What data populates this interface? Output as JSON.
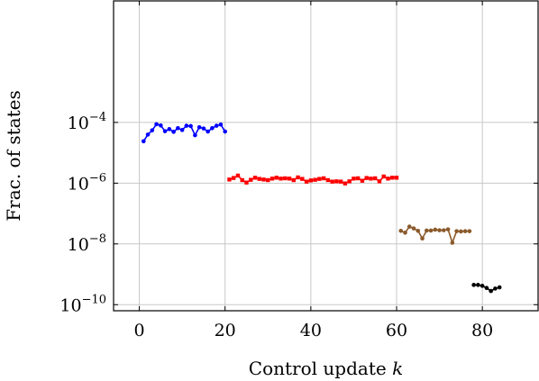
{
  "chart_data": {
    "type": "line",
    "xlabel": "Control update",
    "xlabel_var": "k",
    "ylabel": "Frac. of states",
    "xlim": [
      -6,
      93
    ],
    "ylim_log10": [
      -10.2,
      0
    ],
    "y_scale": "log",
    "grid": true,
    "x_ticks": [
      0,
      20,
      40,
      60,
      80
    ],
    "x_tick_labels": [
      "0",
      "20",
      "40",
      "60",
      "80"
    ],
    "y_ticks_exp": [
      -4,
      -6,
      -8,
      -10
    ],
    "y_tick_labels": [
      {
        "base": "10",
        "exp": "−4"
      },
      {
        "base": "10",
        "exp": "−6"
      },
      {
        "base": "10",
        "exp": "−8"
      },
      {
        "base": "10",
        "exp": "−10"
      }
    ],
    "series": [
      {
        "color": "#0000ff",
        "marker": "circle",
        "x": [
          1,
          2,
          3,
          4,
          5,
          6,
          7,
          8,
          9,
          10,
          11,
          12,
          13,
          14,
          15,
          16,
          17,
          18,
          19,
          20
        ],
        "log10_y": [
          -4.62,
          -4.4,
          -4.26,
          -4.06,
          -4.1,
          -4.29,
          -4.22,
          -4.31,
          -4.19,
          -4.25,
          -4.11,
          -4.12,
          -4.42,
          -4.16,
          -4.2,
          -4.3,
          -4.19,
          -4.11,
          -4.07,
          -4.3
        ]
      },
      {
        "color": "#ff0000",
        "marker": "square",
        "x": [
          21,
          22,
          23,
          24,
          25,
          26,
          27,
          28,
          29,
          30,
          31,
          32,
          33,
          34,
          35,
          36,
          37,
          38,
          39,
          40,
          41,
          42,
          43,
          44,
          45,
          46,
          47,
          48,
          49,
          50,
          51,
          52,
          53,
          54,
          55,
          56,
          57,
          58,
          59,
          60
        ],
        "log10_y": [
          -5.88,
          -5.83,
          -5.75,
          -5.9,
          -5.98,
          -5.89,
          -5.82,
          -5.86,
          -5.88,
          -5.9,
          -5.85,
          -5.82,
          -5.85,
          -5.84,
          -5.85,
          -5.9,
          -5.81,
          -5.86,
          -5.95,
          -5.91,
          -5.89,
          -5.86,
          -5.84,
          -5.9,
          -5.95,
          -5.94,
          -5.95,
          -6.01,
          -5.94,
          -5.85,
          -5.84,
          -5.92,
          -5.83,
          -5.85,
          -5.84,
          -5.94,
          -5.78,
          -5.85,
          -5.82,
          -5.82
        ]
      },
      {
        "color": "#8b5a2b",
        "marker": "circle",
        "x": [
          61,
          62,
          63,
          64,
          65,
          66,
          67,
          68,
          69,
          70,
          71,
          72,
          73,
          74,
          75,
          76,
          77
        ],
        "log10_y": [
          -7.57,
          -7.63,
          -7.43,
          -7.49,
          -7.57,
          -7.82,
          -7.56,
          -7.56,
          -7.53,
          -7.55,
          -7.55,
          -7.52,
          -7.96,
          -7.58,
          -7.59,
          -7.58,
          -7.58
        ]
      },
      {
        "color": "#000000",
        "marker": "circle",
        "x": [
          78,
          79,
          80,
          81,
          82,
          83,
          84
        ],
        "log10_y": [
          -9.35,
          -9.35,
          -9.38,
          -9.45,
          -9.55,
          -9.47,
          -9.43
        ]
      }
    ]
  }
}
